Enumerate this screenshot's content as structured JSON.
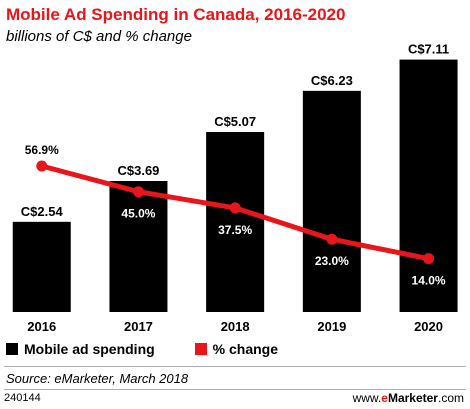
{
  "header": {
    "title": "Mobile Ad Spending in Canada, 2016-2020",
    "subtitle": "billions of C$ and % change"
  },
  "legend": {
    "items": [
      {
        "label": "Mobile ad spending",
        "color": "#000000"
      },
      {
        "label": "% change",
        "color": "#e8161b"
      }
    ]
  },
  "source": "Source: eMarketer, March 2018",
  "footer": {
    "id": "240144",
    "brand_prefix": "www.",
    "brand_e": "e",
    "brand_name": "Marketer",
    "brand_suffix": ".com"
  },
  "chart_data": {
    "type": "bar",
    "categories": [
      "2016",
      "2017",
      "2018",
      "2019",
      "2020"
    ],
    "series": [
      {
        "name": "Mobile ad spending",
        "values": [
          2.54,
          3.69,
          5.07,
          6.23,
          7.11
        ],
        "labels": [
          "C$2.54",
          "C$3.69",
          "C$5.07",
          "C$6.23",
          "C$7.11"
        ],
        "color": "#000000"
      },
      {
        "name": "% change",
        "type": "line",
        "values": [
          56.9,
          45.0,
          37.5,
          23.0,
          14.0
        ],
        "labels": [
          "56.9%",
          "45.0%",
          "37.5%",
          "23.0%",
          "14.0%"
        ],
        "color": "#e8161b"
      }
    ],
    "xlabel": "",
    "ylabel": "",
    "legend_position": "bottom-left",
    "grid": false
  }
}
